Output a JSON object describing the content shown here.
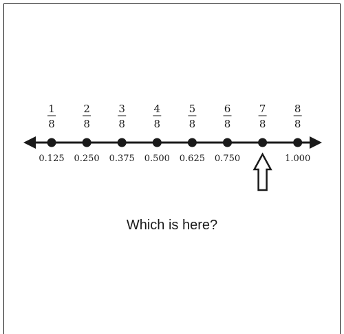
{
  "number_line": {
    "ticks": [
      {
        "numerator": "1",
        "denominator": "8",
        "value": 0.125,
        "decimal_label": "0.125"
      },
      {
        "numerator": "2",
        "denominator": "8",
        "value": 0.25,
        "decimal_label": "0.250"
      },
      {
        "numerator": "3",
        "denominator": "8",
        "value": 0.375,
        "decimal_label": "0.375"
      },
      {
        "numerator": "4",
        "denominator": "8",
        "value": 0.5,
        "decimal_label": "0.500"
      },
      {
        "numerator": "5",
        "denominator": "8",
        "value": 0.625,
        "decimal_label": "0.625"
      },
      {
        "numerator": "6",
        "denominator": "8",
        "value": 0.75,
        "decimal_label": "0.750"
      },
      {
        "numerator": "7",
        "denominator": "8",
        "value": 0.875,
        "decimal_label": ""
      },
      {
        "numerator": "8",
        "denominator": "8",
        "value": 1.0,
        "decimal_label": "1.000"
      }
    ],
    "arrow_marker_value": 0.875,
    "line_color": "#1a1a1a"
  },
  "question": "Which is here?"
}
